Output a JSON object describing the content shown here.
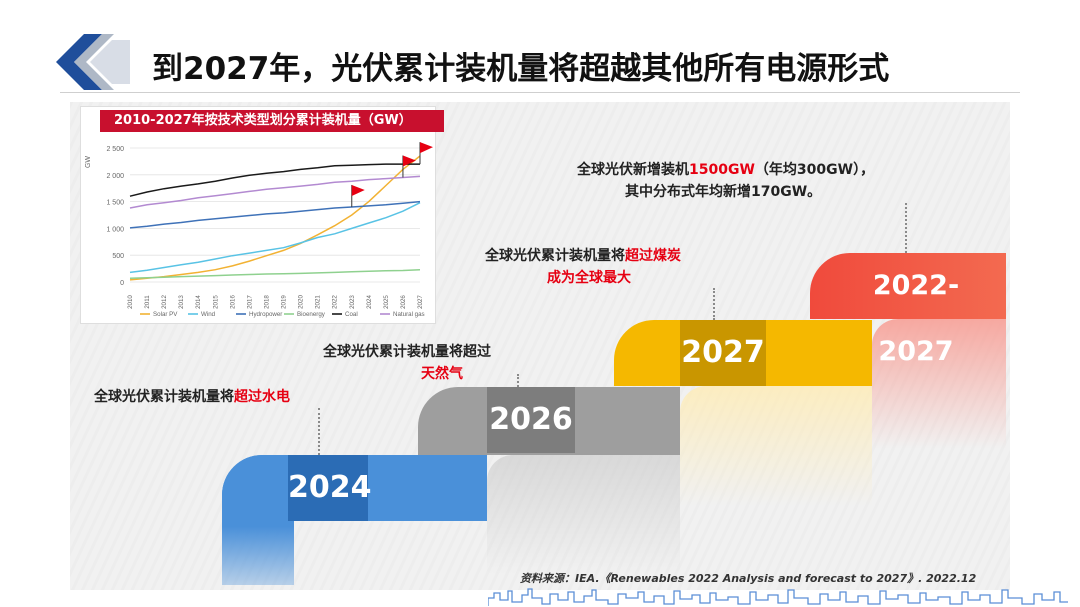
{
  "header": {
    "title": "到2027年，光伏累计装机量将超越其他所有电源形式"
  },
  "chart_data": {
    "type": "line",
    "title": "2010-2027年按技术类型划分累计装机量（GW）",
    "ylabel": "GW",
    "ylim": [
      0,
      2500
    ],
    "yticks": [
      "0",
      "500",
      "1 000",
      "1 500",
      "2 000",
      "2 500"
    ],
    "x": [
      "2010",
      "2011",
      "2012",
      "2013",
      "2014",
      "2015",
      "2016",
      "2017",
      "2018",
      "2019",
      "2020",
      "2021",
      "2022",
      "2023",
      "2024",
      "2025",
      "2026",
      "2027"
    ],
    "series": [
      {
        "name": "Solar PV",
        "color": "#f2b233",
        "values": [
          40,
          70,
          100,
          140,
          180,
          230,
          300,
          390,
          490,
          590,
          720,
          880,
          1050,
          1250,
          1500,
          1800,
          2100,
          2350
        ]
      },
      {
        "name": "Wind",
        "color": "#59c3e5",
        "values": [
          180,
          220,
          270,
          320,
          370,
          430,
          490,
          540,
          590,
          640,
          730,
          830,
          900,
          1000,
          1100,
          1200,
          1320,
          1480
        ]
      },
      {
        "name": "Hydropower",
        "color": "#3f72b8",
        "values": [
          1010,
          1040,
          1080,
          1110,
          1150,
          1180,
          1210,
          1240,
          1270,
          1290,
          1320,
          1350,
          1380,
          1400,
          1420,
          1440,
          1470,
          1500
        ]
      },
      {
        "name": "Bioenergy",
        "color": "#8fd18f",
        "values": [
          70,
          80,
          90,
          100,
          110,
          120,
          130,
          140,
          150,
          155,
          160,
          170,
          180,
          190,
          200,
          210,
          215,
          230
        ]
      },
      {
        "name": "Coal",
        "color": "#1a1a1a",
        "values": [
          1600,
          1680,
          1740,
          1790,
          1830,
          1880,
          1940,
          1990,
          2030,
          2060,
          2100,
          2130,
          2170,
          2180,
          2190,
          2200,
          2200,
          2200
        ]
      },
      {
        "name": "Natural gas",
        "color": "#b38ad1",
        "values": [
          1380,
          1440,
          1480,
          1520,
          1570,
          1610,
          1650,
          1690,
          1730,
          1760,
          1790,
          1820,
          1860,
          1880,
          1910,
          1930,
          1950,
          1970
        ]
      }
    ]
  },
  "steps": {
    "y2024": "2024",
    "y2026": "2026",
    "y2027": "2027",
    "y2227": "2022-2027"
  },
  "callouts": {
    "c2024_prefix": "全球光伏累计装机量将",
    "c2024_hl": "超过水电",
    "c2026_line1": "全球光伏累计装机量将超过",
    "c2026_hl": "天然气",
    "c2027_prefix": "全球光伏累计装机量将",
    "c2027_hl1": "超过煤炭",
    "c2027_hl2": "成为全球最大",
    "c2227_prefix": "全球光伏新增装机",
    "c2227_hl": "1500GW",
    "c2227_suffix": "（年均300GW），",
    "c2227_line2": "其中分布式年均新增170GW。"
  },
  "source": "资料来源：IEA.《Renewables 2022 Analysis and forecast to 2027》. 2022.12"
}
